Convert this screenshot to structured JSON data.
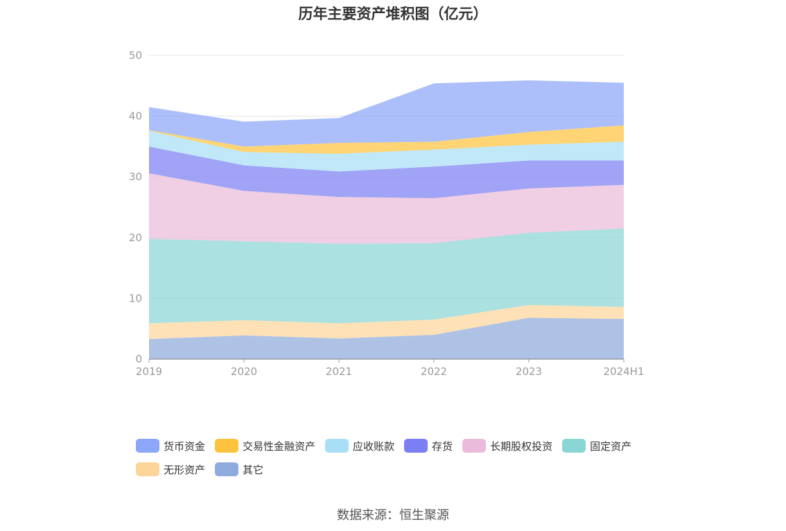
{
  "chart_data": {
    "type": "area",
    "stacked": true,
    "title": "历年主要资产堆积图（亿元）",
    "categories": [
      "2019",
      "2020",
      "2021",
      "2022",
      "2023",
      "2024H1"
    ],
    "y_ticks": [
      "0",
      "10",
      "20",
      "30",
      "40",
      "50"
    ],
    "ylim": [
      0,
      50
    ],
    "grid": true,
    "legend_position": "bottom",
    "series": [
      {
        "name": "其它",
        "color": "#8faadc",
        "values": [
          3.3,
          3.9,
          3.4,
          4.0,
          6.8,
          6.6
        ]
      },
      {
        "name": "无形资产",
        "color": "#fdd59a",
        "values": [
          2.6,
          2.5,
          2.5,
          2.5,
          2.1,
          2.0
        ]
      },
      {
        "name": "固定资产",
        "color": "#8ad6d4",
        "values": [
          13.9,
          13.0,
          13.1,
          12.6,
          11.9,
          12.9
        ]
      },
      {
        "name": "长期股权投资",
        "color": "#eabbda",
        "values": [
          10.8,
          8.3,
          7.7,
          7.4,
          7.3,
          7.2
        ]
      },
      {
        "name": "存货",
        "color": "#7b7ff3",
        "values": [
          4.4,
          4.2,
          4.2,
          5.2,
          4.6,
          4.0
        ]
      },
      {
        "name": "应收账款",
        "color": "#a8dff7",
        "values": [
          2.6,
          2.2,
          2.9,
          2.8,
          2.6,
          3.1
        ]
      },
      {
        "name": "交易性金融资产",
        "color": "#fdc33e",
        "values": [
          0.1,
          0.9,
          1.8,
          1.3,
          2.1,
          2.7
        ]
      },
      {
        "name": "货币资金",
        "color": "#8ca6f8",
        "values": [
          3.8,
          4.1,
          4.1,
          9.6,
          8.5,
          7.0
        ]
      }
    ],
    "legend_order": [
      "货币资金",
      "交易性金融资产",
      "应收账款",
      "存货",
      "长期股权投资",
      "固定资产",
      "无形资产",
      "其它"
    ]
  },
  "source": "数据来源：恒生聚源"
}
